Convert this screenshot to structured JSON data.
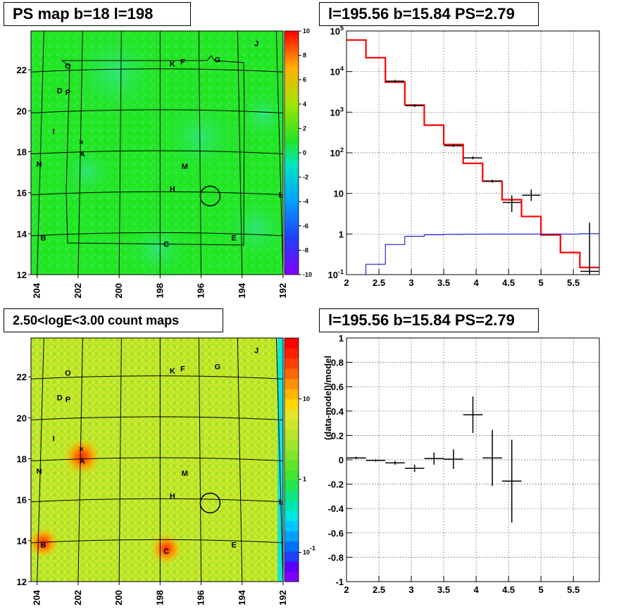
{
  "panels": {
    "ps_map": {
      "title": "PS map b=18 l=198"
    },
    "spectrum": {
      "title": "l=195.56 b=15.84 PS=2.79"
    },
    "count_map": {
      "title": "2.50<logE<3.00 count maps"
    },
    "residual": {
      "title": "l=195.56 b=15.84 PS=2.79"
    }
  },
  "colors": {
    "ps_background": "#22e622",
    "count_background": "#b4e628",
    "model": "#ff0000",
    "background_model": "#0000cc",
    "data": "#000000"
  },
  "chart_data": [
    {
      "type": "heatmap",
      "name_text": "PS map b=18 l=198",
      "x_ticks": [
        "204",
        "202",
        "200",
        "198",
        "196",
        "194",
        "192"
      ],
      "y_ticks": [
        "12",
        "14",
        "16",
        "18",
        "20",
        "22"
      ],
      "colorbar": {
        "min": -10,
        "max": 10,
        "ticks": [
          "-10",
          "-8",
          "-6",
          "-4",
          "-2",
          "0",
          "2",
          "4",
          "6",
          "8",
          "10"
        ]
      },
      "sources": [
        {
          "label": "J",
          "l": 193.3,
          "b": 23.3
        },
        {
          "label": "O",
          "l": 202.5,
          "b": 22.2
        },
        {
          "label": "K",
          "l": 197.4,
          "b": 22.3
        },
        {
          "label": "F",
          "l": 196.9,
          "b": 22.4
        },
        {
          "label": "G",
          "l": 195.2,
          "b": 22.5
        },
        {
          "label": "D",
          "l": 202.9,
          "b": 21.0
        },
        {
          "label": "P",
          "l": 202.5,
          "b": 20.9
        },
        {
          "label": "I",
          "l": 203.2,
          "b": 19.0
        },
        {
          "label": "A",
          "l": 201.8,
          "b": 17.9
        },
        {
          "label": "N",
          "l": 203.9,
          "b": 17.4
        },
        {
          "label": "M",
          "l": 196.8,
          "b": 17.3
        },
        {
          "label": "H",
          "l": 197.4,
          "b": 16.2
        },
        {
          "label": "L",
          "l": 192.1,
          "b": 15.9
        },
        {
          "label": "B",
          "l": 203.7,
          "b": 13.8
        },
        {
          "label": "E",
          "l": 194.4,
          "b": 13.8
        },
        {
          "label": "C",
          "l": 197.7,
          "b": 13.5
        }
      ],
      "marker": {
        "l": 195.56,
        "b": 15.84
      }
    },
    {
      "type": "line",
      "title": "l=195.56 b=15.84 PS=2.79",
      "x_ticks": [
        "2",
        "2.5",
        "3",
        "3.5",
        "4",
        "4.5",
        "5",
        "5.5"
      ],
      "y_ticks": [
        "10^-1",
        "1",
        "10",
        "10^2",
        "10^3",
        "10^4",
        "10^5"
      ],
      "xlim": [
        2,
        5.9
      ],
      "ylim_log10": [
        -1,
        5
      ],
      "series": [
        {
          "role": "model",
          "edges": [
            2,
            2.3,
            2.6,
            2.9,
            3.2,
            3.5,
            3.8,
            4.1,
            4.4,
            4.7,
            5.0,
            5.3,
            5.6,
            5.9
          ],
          "values": [
            60000,
            22000,
            5500,
            1500,
            480,
            160,
            55,
            20,
            7,
            2.7,
            0.95,
            0.35,
            0.15
          ]
        },
        {
          "role": "background",
          "edges": [
            2,
            2.3,
            2.6,
            2.9,
            3.2,
            3.5,
            3.8,
            4.1,
            4.4,
            4.7,
            5.0,
            5.3,
            5.6,
            5.9
          ],
          "values": [
            0.001,
            0.18,
            0.55,
            0.88,
            0.96,
            0.98,
            0.99,
            1.0,
            1.0,
            1.0,
            1.0,
            1.0,
            1.02
          ]
        },
        {
          "role": "data",
          "points": [
            {
              "x": 2.75,
              "y": 5800
            },
            {
              "x": 3.05,
              "y": 1450
            },
            {
              "x": 3.65,
              "y": 150
            },
            {
              "x": 3.95,
              "y": 75
            },
            {
              "x": 4.25,
              "y": 20
            },
            {
              "x": 4.55,
              "y": 6,
              "ylo": 3.5,
              "yhi": 9
            },
            {
              "x": 4.85,
              "y": 9,
              "ylo": 6.5,
              "yhi": 12.5
            },
            {
              "x": 5.75,
              "y": 0.12,
              "ylo": 0.08,
              "yhi": 1.9
            }
          ]
        }
      ]
    },
    {
      "type": "heatmap",
      "name_text": "2.50<logE<3.00 count maps",
      "x_ticks": [
        "204",
        "202",
        "200",
        "198",
        "196",
        "194",
        "192"
      ],
      "y_ticks": [
        "12",
        "14",
        "16",
        "18",
        "20",
        "22"
      ],
      "colorbar": {
        "scale": "log",
        "ticks": [
          "10^-1",
          "1",
          "10"
        ]
      },
      "hotspots": [
        {
          "l": 201.8,
          "b": 18.1
        },
        {
          "l": 203.7,
          "b": 13.9
        },
        {
          "l": 197.7,
          "b": 13.6
        }
      ]
    },
    {
      "type": "scatter",
      "title": "l=195.56 b=15.84 PS=2.79",
      "ylabel": "(data-model)/model",
      "x_ticks": [
        "2",
        "2.5",
        "3",
        "3.5",
        "4",
        "4.5",
        "5",
        "5.5"
      ],
      "y_ticks": [
        "-1",
        "-0.8",
        "-0.6",
        "-0.4",
        "-0.2",
        "0",
        "0.2",
        "0.4",
        "0.6",
        "0.8",
        "1"
      ],
      "xlim": [
        2,
        5.9
      ],
      "ylim": [
        -1,
        1
      ],
      "points": [
        {
          "x": 2.15,
          "xerr": 0.15,
          "y": 0.015,
          "yerr": 0.01
        },
        {
          "x": 2.45,
          "xerr": 0.15,
          "y": -0.005,
          "yerr": 0.01
        },
        {
          "x": 2.75,
          "xerr": 0.15,
          "y": -0.025,
          "yerr": 0.015
        },
        {
          "x": 3.05,
          "xerr": 0.15,
          "y": -0.07,
          "yerr": 0.03
        },
        {
          "x": 3.35,
          "xerr": 0.15,
          "y": 0.01,
          "yerr": 0.05
        },
        {
          "x": 3.65,
          "xerr": 0.15,
          "y": 0.005,
          "yerr": 0.08
        },
        {
          "x": 3.95,
          "xerr": 0.15,
          "y": 0.37,
          "yerr": 0.15
        },
        {
          "x": 4.25,
          "xerr": 0.15,
          "y": 0.015,
          "yerr": 0.23
        },
        {
          "x": 4.55,
          "xerr": 0.15,
          "y": -0.175,
          "yerr": 0.34
        }
      ]
    }
  ]
}
